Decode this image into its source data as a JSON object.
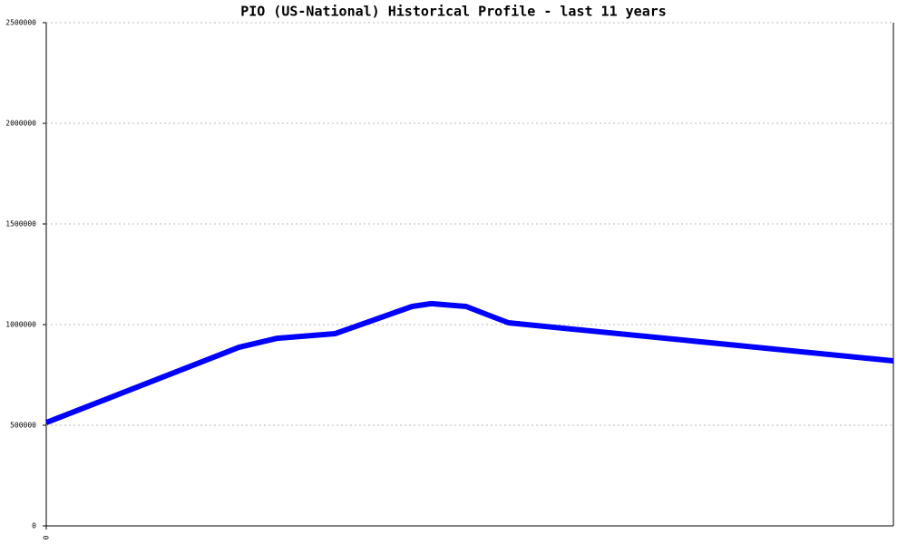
{
  "chart_data": {
    "type": "line",
    "title": "PIO (US-National) Historical Profile - last 11 years",
    "x": [
      0,
      2.5,
      3.0,
      3.75,
      4.75,
      5.0,
      5.45,
      6.0,
      11
    ],
    "values": [
      513000,
      887000,
      932000,
      955000,
      1090000,
      1104000,
      1090000,
      1009000,
      820000
    ],
    "color": "#0000ff",
    "xlim": [
      0,
      11
    ],
    "xticks": [
      0
    ],
    "ylim": [
      0,
      2500000
    ],
    "yticks": [
      0,
      500000,
      1000000,
      1500000,
      2000000,
      2500000
    ],
    "grid": true
  }
}
